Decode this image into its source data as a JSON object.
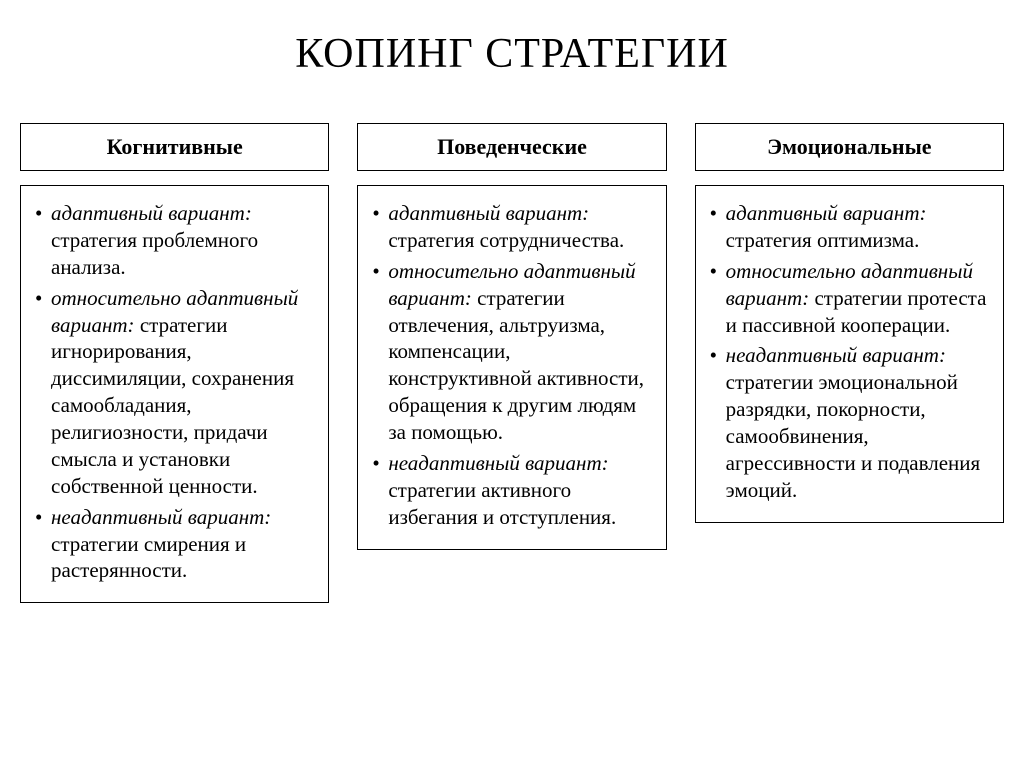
{
  "title": "КОПИНГ СТРАТЕГИИ",
  "columns": [
    {
      "header": "Когнитивные",
      "items": [
        {
          "lead": "адаптивный вариант:",
          "rest": " стратегия проблемного анализа."
        },
        {
          "lead": "относительно адаптивный вариант:",
          "rest": " стратегии игнорирования, диссимиляции, сохранения самообладания, религиозности, придачи смысла и установки собственной ценности."
        },
        {
          "lead": "неадаптивный вариант:",
          "rest": " стратегии смирения и растерянности."
        }
      ]
    },
    {
      "header": "Поведенческие",
      "items": [
        {
          "lead": "адаптивный вариант:",
          "rest": " стратегия сотрудничества."
        },
        {
          "lead": "относительно адаптивный вариант:",
          "rest": " стратегии отвлечения, альтруизма, компенсации, конструктивной активности, обращения к другим людям за помощью."
        },
        {
          "lead": "неадаптивный вариант:",
          "rest": " стратегии активного избегания и отступления."
        }
      ]
    },
    {
      "header": "Эмоциональные",
      "items": [
        {
          "lead": "адаптивный вариант:",
          "rest": " стратегия оптимизма."
        },
        {
          "lead": "относительно адаптивный вариант:",
          "rest": " стратегии протеста и пассивной кооперации."
        },
        {
          "lead": "неадаптивный вариант:",
          "rest": " стратегии эмоциональной разрядки, покорности, самообвинения, агрессивности и подавления эмоций."
        }
      ]
    }
  ]
}
